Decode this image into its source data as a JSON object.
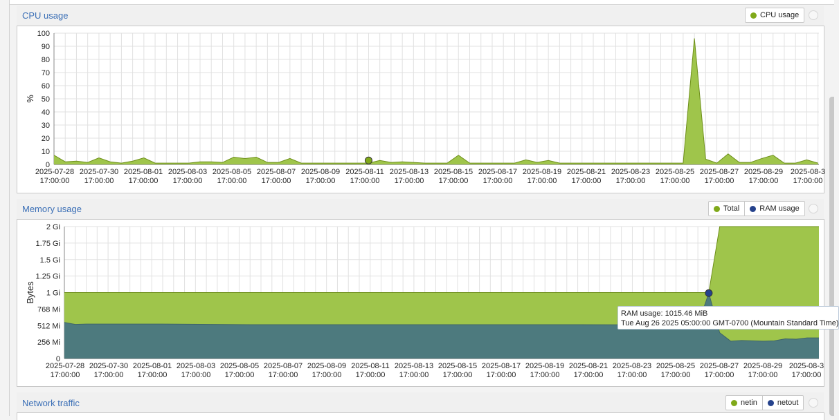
{
  "panels": {
    "cpu": {
      "title": "CPU usage",
      "legend": [
        {
          "label": "CPU usage",
          "color": "#80a91a"
        }
      ]
    },
    "memory": {
      "title": "Memory usage",
      "legend": [
        {
          "label": "Total",
          "color": "#80a91a"
        },
        {
          "label": "RAM usage",
          "color": "#25428c"
        }
      ]
    },
    "network": {
      "title": "Network traffic",
      "legend": [
        {
          "label": "netin",
          "color": "#80a91a"
        },
        {
          "label": "netout",
          "color": "#25428c"
        }
      ]
    }
  },
  "tooltip": {
    "line1": "RAM usage: 1015.46 MiB",
    "line2": "Tue Aug 26 2025 05:00:00 GMT-0700 (Mountain Standard Time)"
  },
  "chart_data": [
    {
      "type": "area",
      "title": "CPU usage",
      "ylabel": "%",
      "ylim": [
        0,
        100
      ],
      "yticks": [
        "0",
        "10",
        "20",
        "30",
        "40",
        "50",
        "60",
        "70",
        "80",
        "90",
        "100"
      ],
      "xlim": [
        "2025-07-28 05:00",
        "2025-08-31 06:00"
      ],
      "xticks": [
        [
          "2025-07-28",
          "17:00:00"
        ],
        [
          "2025-07-30",
          "17:00:00"
        ],
        [
          "2025-08-01",
          "17:00:00"
        ],
        [
          "2025-08-03",
          "17:00:00"
        ],
        [
          "2025-08-05",
          "17:00:00"
        ],
        [
          "2025-08-07",
          "17:00:00"
        ],
        [
          "2025-08-09",
          "17:00:00"
        ],
        [
          "2025-08-11",
          "17:00:00"
        ],
        [
          "2025-08-13",
          "17:00:00"
        ],
        [
          "2025-08-15",
          "17:00:00"
        ],
        [
          "2025-08-17",
          "17:00:00"
        ],
        [
          "2025-08-19",
          "17:00:00"
        ],
        [
          "2025-08-21",
          "17:00:00"
        ],
        [
          "2025-08-23",
          "17:00:00"
        ],
        [
          "2025-08-25",
          "17:00:00"
        ],
        [
          "2025-08-27",
          "17:00:00"
        ],
        [
          "2025-08-29",
          "17:00:00"
        ],
        [
          "2025-08-3",
          "17:00:00"
        ]
      ],
      "grid": true,
      "series": [
        {
          "name": "CPU usage",
          "color": "#80a91a",
          "x": [
            "2025-07-28 05:00",
            "2025-07-28 17:00",
            "2025-07-29 05:00",
            "2025-07-29 17:00",
            "2025-07-30 05:00",
            "2025-07-30 17:00",
            "2025-07-31 05:00",
            "2025-07-31 17:00",
            "2025-08-01 05:00",
            "2025-08-01 17:00",
            "2025-08-02 05:00",
            "2025-08-02 17:00",
            "2025-08-03 05:00",
            "2025-08-03 17:00",
            "2025-08-04 05:00",
            "2025-08-04 17:00",
            "2025-08-05 05:00",
            "2025-08-05 17:00",
            "2025-08-06 05:00",
            "2025-08-06 17:00",
            "2025-08-07 05:00",
            "2025-08-07 17:00",
            "2025-08-08 05:00",
            "2025-08-08 17:00",
            "2025-08-09 05:00",
            "2025-08-09 17:00",
            "2025-08-10 05:00",
            "2025-08-10 17:00",
            "2025-08-11 05:00",
            "2025-08-11 17:00",
            "2025-08-12 05:00",
            "2025-08-12 17:00",
            "2025-08-13 05:00",
            "2025-08-13 17:00",
            "2025-08-14 05:00",
            "2025-08-14 17:00",
            "2025-08-15 05:00",
            "2025-08-15 17:00",
            "2025-08-16 05:00",
            "2025-08-16 17:00",
            "2025-08-17 05:00",
            "2025-08-17 17:00",
            "2025-08-18 05:00",
            "2025-08-18 17:00",
            "2025-08-19 05:00",
            "2025-08-19 17:00",
            "2025-08-20 05:00",
            "2025-08-20 17:00",
            "2025-08-21 05:00",
            "2025-08-21 17:00",
            "2025-08-22 05:00",
            "2025-08-22 17:00",
            "2025-08-23 05:00",
            "2025-08-23 17:00",
            "2025-08-24 05:00",
            "2025-08-24 17:00",
            "2025-08-25 05:00",
            "2025-08-25 17:00",
            "2025-08-26 05:00",
            "2025-08-26 17:00",
            "2025-08-27 05:00",
            "2025-08-27 17:00",
            "2025-08-28 05:00",
            "2025-08-28 17:00",
            "2025-08-29 05:00",
            "2025-08-29 17:00",
            "2025-08-30 05:00",
            "2025-08-30 17:00",
            "2025-08-31 05:00"
          ],
          "y": [
            7,
            2,
            2.5,
            1.5,
            5,
            2,
            1,
            2.5,
            5,
            1,
            1,
            1,
            1,
            2,
            2,
            1.5,
            5.5,
            4.5,
            5.5,
            1.5,
            1.5,
            4.5,
            1,
            1,
            1,
            1,
            1,
            1,
            1,
            3,
            1.5,
            2,
            1.5,
            1,
            1,
            1,
            7,
            1,
            1,
            1,
            1,
            1,
            3.5,
            1.5,
            3,
            1,
            1,
            1,
            1,
            1,
            1,
            1,
            1,
            1,
            1,
            1,
            1,
            96,
            4,
            1,
            8,
            1.5,
            1.5,
            4.5,
            7,
            1,
            1,
            3.5,
            1
          ],
          "marker": {
            "x": "2025-08-11 05:00",
            "y": 3
          }
        }
      ]
    },
    {
      "type": "area",
      "title": "Memory usage",
      "ylabel": "Bytes",
      "ylim": [
        0,
        2048
      ],
      "yunit": "MiB",
      "yticks": [
        [
          "0",
          0
        ],
        [
          "256 Mi",
          256
        ],
        [
          "512 Mi",
          512
        ],
        [
          "768 Mi",
          768
        ],
        [
          "1 Gi",
          1024
        ],
        [
          "1.25 Gi",
          1280
        ],
        [
          "1.5 Gi",
          1536
        ],
        [
          "1.75 Gi",
          1792
        ],
        [
          "2 Gi",
          2048
        ]
      ],
      "xlim": [
        "2025-07-27 17:00",
        "2025-08-31 06:00"
      ],
      "xticks": [
        [
          "2025-07-28",
          "17:00:00"
        ],
        [
          "2025-07-30",
          "17:00:00"
        ],
        [
          "2025-08-01",
          "17:00:00"
        ],
        [
          "2025-08-03",
          "17:00:00"
        ],
        [
          "2025-08-05",
          "17:00:00"
        ],
        [
          "2025-08-07",
          "17:00:00"
        ],
        [
          "2025-08-09",
          "17:00:00"
        ],
        [
          "2025-08-11",
          "17:00:00"
        ],
        [
          "2025-08-13",
          "17:00:00"
        ],
        [
          "2025-08-15",
          "17:00:00"
        ],
        [
          "2025-08-17",
          "17:00:00"
        ],
        [
          "2025-08-19",
          "17:00:00"
        ],
        [
          "2025-08-21",
          "17:00:00"
        ],
        [
          "2025-08-23",
          "17:00:00"
        ],
        [
          "2025-08-25",
          "17:00:00"
        ],
        [
          "2025-08-27",
          "17:00:00"
        ],
        [
          "2025-08-29",
          "17:00:00"
        ],
        [
          "2025-08-3",
          "17:00:00"
        ]
      ],
      "grid": true,
      "series": [
        {
          "name": "Total",
          "color": "#80a91a",
          "x": [
            "2025-07-27 17:00",
            "2025-08-25 17:00",
            "2025-08-26 05:00",
            "2025-08-26 17:00",
            "2025-08-31 06:00"
          ],
          "y": [
            1024,
            1024,
            1024,
            2048,
            2048
          ]
        },
        {
          "name": "RAM usage",
          "color": "#25428c",
          "x": [
            "2025-07-27 17:00",
            "2025-07-28 05:00",
            "2025-07-28 17:00",
            "2025-08-01 05:00",
            "2025-08-05 05:00",
            "2025-08-10 05:00",
            "2025-08-20 05:00",
            "2025-08-25 17:00",
            "2025-08-26 05:00",
            "2025-08-26 17:00",
            "2025-08-27 05:00",
            "2025-08-27 17:00",
            "2025-08-28 17:00",
            "2025-08-29 05:00",
            "2025-08-29 17:00",
            "2025-08-30 05:00",
            "2025-08-30 17:00",
            "2025-08-31 06:00"
          ],
          "y": [
            560,
            530,
            535,
            535,
            525,
            525,
            525,
            520,
            1015.46,
            400,
            270,
            280,
            270,
            275,
            305,
            300,
            320,
            320
          ],
          "marker": {
            "x": "2025-08-26 05:00",
            "y": 1015.46
          }
        }
      ]
    }
  ]
}
